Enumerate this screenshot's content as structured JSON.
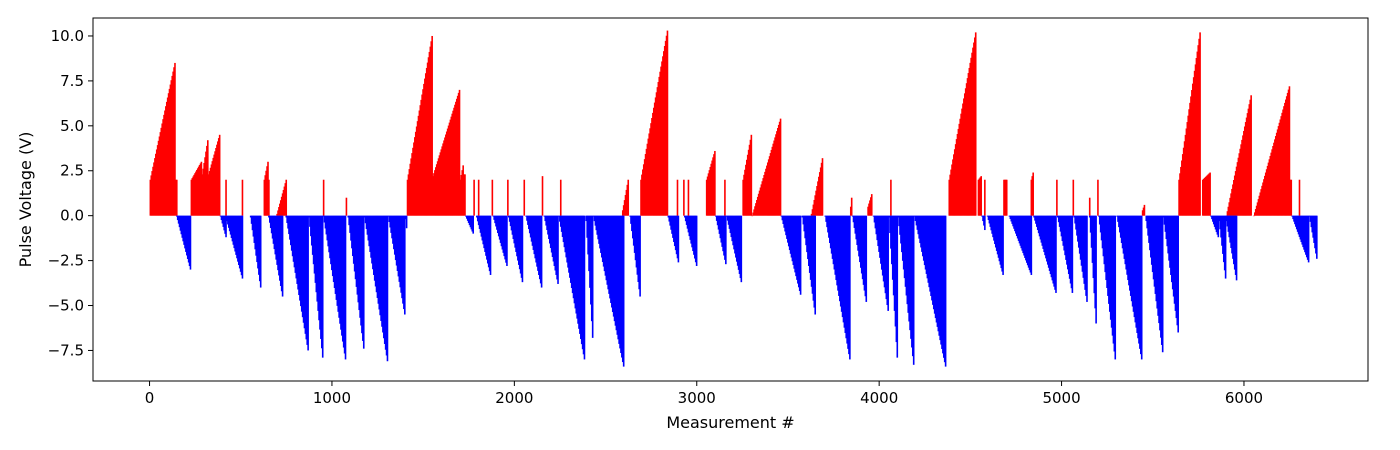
{
  "chart_data": {
    "type": "bar",
    "title": "",
    "xlabel": "Measurement #",
    "ylabel": "Pulse Voltage (V)",
    "xlim": [
      -310,
      6680
    ],
    "ylim": [
      -9.2,
      11.0
    ],
    "xticks": [
      0,
      1000,
      2000,
      3000,
      4000,
      5000,
      6000
    ],
    "yticks": [
      -7.5,
      -5.0,
      -2.5,
      0.0,
      2.5,
      5.0,
      7.5,
      10.0
    ],
    "grid": false,
    "colors": {
      "positive": "#ff0000",
      "negative": "#0000ff"
    },
    "n_measurements": 6400,
    "bar_interval": 5,
    "positive_segments": [
      [
        0,
        140,
        2.0,
        8.5
      ],
      [
        140,
        150,
        2.0,
        2.0
      ],
      [
        225,
        285,
        2.0,
        3.0
      ],
      [
        285,
        320,
        2.3,
        4.2
      ],
      [
        320,
        385,
        2.3,
        4.5
      ],
      [
        415,
        420,
        2.0,
        2.0
      ],
      [
        505,
        510,
        2.0,
        2.0
      ],
      [
        625,
        650,
        2.0,
        3.0
      ],
      [
        650,
        655,
        2.0,
        2.0
      ],
      [
        695,
        750,
        0.1,
        2.0
      ],
      [
        950,
        955,
        2.0,
        2.0
      ],
      [
        1075,
        1080,
        0.5,
        1.0
      ],
      [
        1410,
        1550,
        2.0,
        10.0
      ],
      [
        1550,
        1700,
        2.2,
        7.0
      ],
      [
        1700,
        1720,
        2.0,
        2.8
      ],
      [
        1720,
        1730,
        2.3,
        2.3
      ],
      [
        1775,
        1780,
        2.0,
        2.0
      ],
      [
        1800,
        1805,
        2.0,
        2.0
      ],
      [
        1875,
        1880,
        2.0,
        2.0
      ],
      [
        1960,
        1965,
        2.0,
        2.0
      ],
      [
        2050,
        2055,
        2.0,
        2.0
      ],
      [
        2150,
        2155,
        2.2,
        2.2
      ],
      [
        2250,
        2255,
        2.0,
        2.0
      ],
      [
        2590,
        2625,
        0.3,
        2.0
      ],
      [
        2690,
        2840,
        2.0,
        10.3
      ],
      [
        2890,
        2895,
        2.0,
        2.0
      ],
      [
        2925,
        2930,
        2.0,
        2.0
      ],
      [
        2950,
        2955,
        2.0,
        2.0
      ],
      [
        3050,
        3100,
        2.0,
        3.6
      ],
      [
        3150,
        3155,
        2.0,
        2.0
      ],
      [
        3250,
        3300,
        2.0,
        4.5
      ],
      [
        3300,
        3460,
        0.0,
        5.4
      ],
      [
        3625,
        3690,
        0.1,
        3.2
      ],
      [
        3840,
        3850,
        0.5,
        1.0
      ],
      [
        3935,
        3960,
        0.5,
        1.2
      ],
      [
        4060,
        4065,
        2.0,
        2.0
      ],
      [
        4380,
        4530,
        2.0,
        10.2
      ],
      [
        4540,
        4560,
        2.0,
        2.2
      ],
      [
        4575,
        4580,
        2.0,
        2.0
      ],
      [
        4680,
        4700,
        2.0,
        2.0
      ],
      [
        4830,
        4845,
        2.0,
        2.4
      ],
      [
        4970,
        4975,
        2.0,
        2.0
      ],
      [
        5060,
        5065,
        2.0,
        2.0
      ],
      [
        5150,
        5155,
        0.5,
        1.0
      ],
      [
        5195,
        5200,
        2.0,
        2.0
      ],
      [
        5440,
        5455,
        0.3,
        0.6
      ],
      [
        5640,
        5760,
        2.0,
        10.2
      ],
      [
        5770,
        5815,
        2.0,
        2.4
      ],
      [
        5900,
        6040,
        0.0,
        6.7
      ],
      [
        6050,
        6250,
        0.0,
        7.2
      ],
      [
        6250,
        6260,
        2.0,
        2.0
      ],
      [
        6300,
        6305,
        2.0,
        2.0
      ]
    ],
    "negative_segments": [
      [
        145,
        225,
        -0.05,
        -3.0
      ],
      [
        385,
        420,
        -0.05,
        -1.2
      ],
      [
        420,
        510,
        -0.3,
        -3.5
      ],
      [
        550,
        610,
        -0.1,
        -4.0
      ],
      [
        650,
        730,
        -0.1,
        -4.5
      ],
      [
        745,
        870,
        -0.1,
        -7.5
      ],
      [
        870,
        950,
        -0.1,
        -7.9
      ],
      [
        950,
        1075,
        -0.05,
        -8.0
      ],
      [
        1085,
        1175,
        -0.1,
        -7.4
      ],
      [
        1175,
        1305,
        -0.1,
        -8.1
      ],
      [
        1305,
        1400,
        -0.05,
        -5.5
      ],
      [
        1400,
        1410,
        -0.2,
        -0.7
      ],
      [
        1730,
        1775,
        -0.05,
        -1.0
      ],
      [
        1790,
        1870,
        -0.1,
        -3.3
      ],
      [
        1880,
        1960,
        -0.05,
        -2.8
      ],
      [
        1965,
        2045,
        -0.1,
        -3.7
      ],
      [
        2060,
        2150,
        -0.05,
        -4.0
      ],
      [
        2160,
        2240,
        -0.05,
        -3.8
      ],
      [
        2240,
        2385,
        -0.05,
        -8.0
      ],
      [
        2390,
        2430,
        -0.3,
        -6.8
      ],
      [
        2430,
        2600,
        -0.05,
        -8.4
      ],
      [
        2630,
        2690,
        -0.05,
        -4.5
      ],
      [
        2840,
        2900,
        -0.1,
        -2.6
      ],
      [
        2930,
        3000,
        -0.1,
        -2.8
      ],
      [
        3100,
        3160,
        -0.05,
        -2.7
      ],
      [
        3160,
        3245,
        -0.05,
        -3.7
      ],
      [
        3460,
        3570,
        -0.05,
        -4.4
      ],
      [
        3575,
        3650,
        -0.1,
        -5.5
      ],
      [
        3700,
        3840,
        -0.05,
        -8.0
      ],
      [
        3850,
        3930,
        -0.05,
        -4.8
      ],
      [
        3965,
        4050,
        -0.05,
        -5.3
      ],
      [
        4050,
        4100,
        -0.1,
        -7.9
      ],
      [
        4100,
        4190,
        -0.1,
        -8.3
      ],
      [
        4190,
        4365,
        -0.05,
        -8.4
      ],
      [
        4560,
        4580,
        -0.05,
        -0.8
      ],
      [
        4590,
        4680,
        -0.05,
        -3.3
      ],
      [
        4710,
        4835,
        -0.05,
        -3.3
      ],
      [
        4845,
        4970,
        -0.1,
        -4.3
      ],
      [
        4975,
        5060,
        -0.1,
        -4.3
      ],
      [
        5065,
        5140,
        -0.1,
        -4.8
      ],
      [
        5150,
        5190,
        -0.1,
        -6.0
      ],
      [
        5200,
        5295,
        -0.05,
        -8.0
      ],
      [
        5300,
        5440,
        -0.05,
        -8.0
      ],
      [
        5460,
        5555,
        -0.3,
        -7.6
      ],
      [
        5555,
        5640,
        -0.1,
        -6.5
      ],
      [
        5815,
        5860,
        -0.05,
        -1.2
      ],
      [
        5860,
        5900,
        -0.3,
        -3.5
      ],
      [
        5900,
        5960,
        -0.3,
        -3.6
      ],
      [
        6260,
        6355,
        -0.05,
        -2.6
      ],
      [
        6355,
        6400,
        -0.05,
        -2.4
      ]
    ]
  }
}
